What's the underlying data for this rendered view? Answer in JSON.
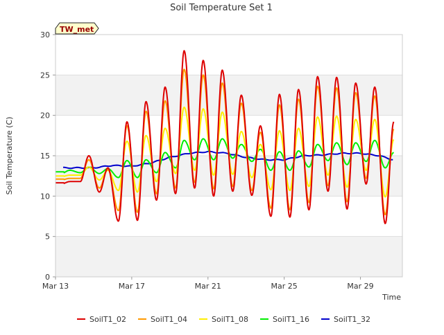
{
  "chart_data": {
    "type": "line",
    "title": "Soil Temperature Set 1",
    "xlabel": "Time",
    "ylabel": "Soil Temperature (C)",
    "badge": "TW_met",
    "ylim": [
      0,
      30
    ],
    "yticks": [
      0,
      5,
      10,
      15,
      20,
      25,
      30
    ],
    "xlim_days": [
      13,
      31.2
    ],
    "xticks": [
      {
        "day": 13,
        "label": "Mar 13"
      },
      {
        "day": 17,
        "label": "Mar 17"
      },
      {
        "day": 21,
        "label": "Mar 21"
      },
      {
        "day": 25,
        "label": "Mar 25"
      },
      {
        "day": 29,
        "label": "Mar 29"
      }
    ],
    "grid": "horizontal bands",
    "legend_position": "bottom",
    "series": [
      {
        "name": "SoilT1_02",
        "color": "#dd0000",
        "daily_max": [
          11.8,
          15.0,
          13.5,
          19.2,
          21.7,
          23.5,
          28.0,
          26.8,
          25.6,
          22.5,
          18.7,
          22.6,
          23.2,
          24.8,
          24.7,
          24.0,
          23.5,
          19.2,
          21.8
        ],
        "daily_min": [
          11.5,
          11.8,
          10.5,
          6.9,
          7.0,
          9.5,
          10.3,
          11.0,
          10.0,
          10.6,
          10.1,
          7.5,
          7.4,
          8.3,
          10.6,
          8.4,
          11.5,
          6.6,
          5.5
        ]
      },
      {
        "name": "SoilT1_04",
        "color": "#ff9900",
        "daily_max": [
          12.2,
          14.5,
          13.3,
          18.7,
          20.5,
          21.8,
          25.7,
          25.0,
          24.0,
          21.5,
          17.9,
          21.3,
          22.0,
          23.6,
          23.4,
          22.8,
          22.4,
          18.3,
          20.8
        ],
        "daily_min": [
          12.0,
          12.2,
          11.0,
          8.2,
          8.0,
          10.3,
          11.0,
          11.7,
          10.9,
          11.2,
          10.7,
          8.5,
          8.3,
          9.2,
          11.3,
          9.3,
          12.2,
          7.7,
          6.7
        ]
      },
      {
        "name": "SoilT1_08",
        "color": "#ffee00",
        "daily_max": [
          12.6,
          13.6,
          13.2,
          16.8,
          17.5,
          18.4,
          21.0,
          20.8,
          20.4,
          18.0,
          16.4,
          18.1,
          18.4,
          19.8,
          19.9,
          19.5,
          19.5,
          17.0,
          17.6
        ],
        "daily_min": [
          12.4,
          12.6,
          12.0,
          10.7,
          10.5,
          11.8,
          12.8,
          13.2,
          12.6,
          12.7,
          12.3,
          10.8,
          10.7,
          11.2,
          12.6,
          11.1,
          13.2,
          9.9,
          9.4
        ]
      },
      {
        "name": "SoilT1_16",
        "color": "#00ee00",
        "daily_max": [
          13.2,
          13.6,
          13.4,
          14.4,
          14.5,
          15.4,
          16.9,
          17.1,
          17.1,
          16.4,
          15.8,
          15.5,
          15.6,
          16.4,
          16.6,
          16.6,
          16.9,
          15.4,
          15.3
        ],
        "daily_min": [
          12.8,
          12.9,
          12.8,
          12.3,
          12.3,
          12.9,
          13.5,
          14.5,
          14.5,
          14.7,
          14.3,
          13.2,
          13.2,
          13.6,
          14.4,
          13.9,
          14.3,
          13.5,
          12.5
        ]
      },
      {
        "name": "SoilT1_32",
        "color": "#0000cc",
        "anchors": [
          {
            "day": 13.4,
            "value": 13.5
          },
          {
            "day": 14.0,
            "value": 13.5
          },
          {
            "day": 15.0,
            "value": 13.5
          },
          {
            "day": 16.0,
            "value": 13.8
          },
          {
            "day": 17.0,
            "value": 13.7
          },
          {
            "day": 18.0,
            "value": 14.1
          },
          {
            "day": 19.0,
            "value": 14.8
          },
          {
            "day": 20.0,
            "value": 15.3
          },
          {
            "day": 21.0,
            "value": 15.5
          },
          {
            "day": 22.0,
            "value": 15.3
          },
          {
            "day": 23.0,
            "value": 14.8
          },
          {
            "day": 24.0,
            "value": 14.5
          },
          {
            "day": 25.0,
            "value": 14.5
          },
          {
            "day": 26.0,
            "value": 15.0
          },
          {
            "day": 27.0,
            "value": 15.1
          },
          {
            "day": 28.0,
            "value": 15.3
          },
          {
            "day": 29.0,
            "value": 15.3
          },
          {
            "day": 30.0,
            "value": 15.0
          },
          {
            "day": 30.7,
            "value": 14.5
          }
        ]
      }
    ]
  }
}
